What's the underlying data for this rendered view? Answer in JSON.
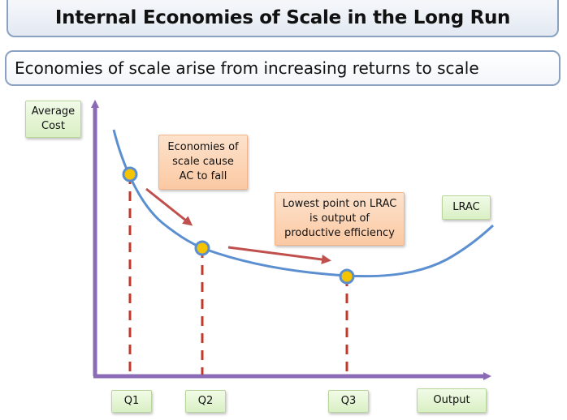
{
  "title": "Internal Economies of Scale in the Long Run",
  "subtitle": "Economies of scale arise from increasing returns to scale",
  "diagram": {
    "y_axis_label": "Average\nCost",
    "x_axis_label": "Output",
    "curve_label": "LRAC",
    "quantity_labels": [
      "Q1",
      "Q2",
      "Q3"
    ],
    "annotation_falling": "Economies of\nscale cause\nAC to fall",
    "annotation_lowest": "Lowest point on LRAC\nis output of\nproductive efficiency"
  },
  "colors": {
    "axis": "#8b6bb5",
    "curve": "#5b8fcf",
    "point_fill": "#f5c400",
    "point_stroke": "#5b8fcf",
    "dashed_line": "#c0392b",
    "arrow": "#c0504d"
  }
}
